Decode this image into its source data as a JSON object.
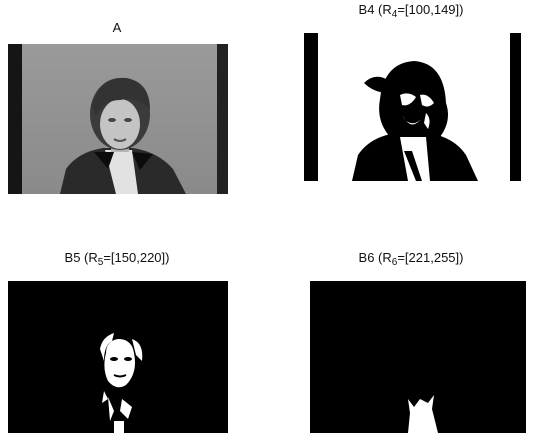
{
  "panels": [
    {
      "id": "A",
      "title_prefix": "A",
      "sub": "",
      "title_suffix": "",
      "kind": "grayscale"
    },
    {
      "id": "B4",
      "title_prefix": "B4 (R",
      "sub": "4",
      "title_suffix": "=[100,149])",
      "kind": "threshold-mid"
    },
    {
      "id": "B5",
      "title_prefix": "B5 (R",
      "sub": "5",
      "title_suffix": "=[150,220])",
      "kind": "threshold-high"
    },
    {
      "id": "B6",
      "title_prefix": "B6 (R",
      "sub": "6",
      "title_suffix": "=[221,255])",
      "kind": "threshold-top"
    }
  ]
}
